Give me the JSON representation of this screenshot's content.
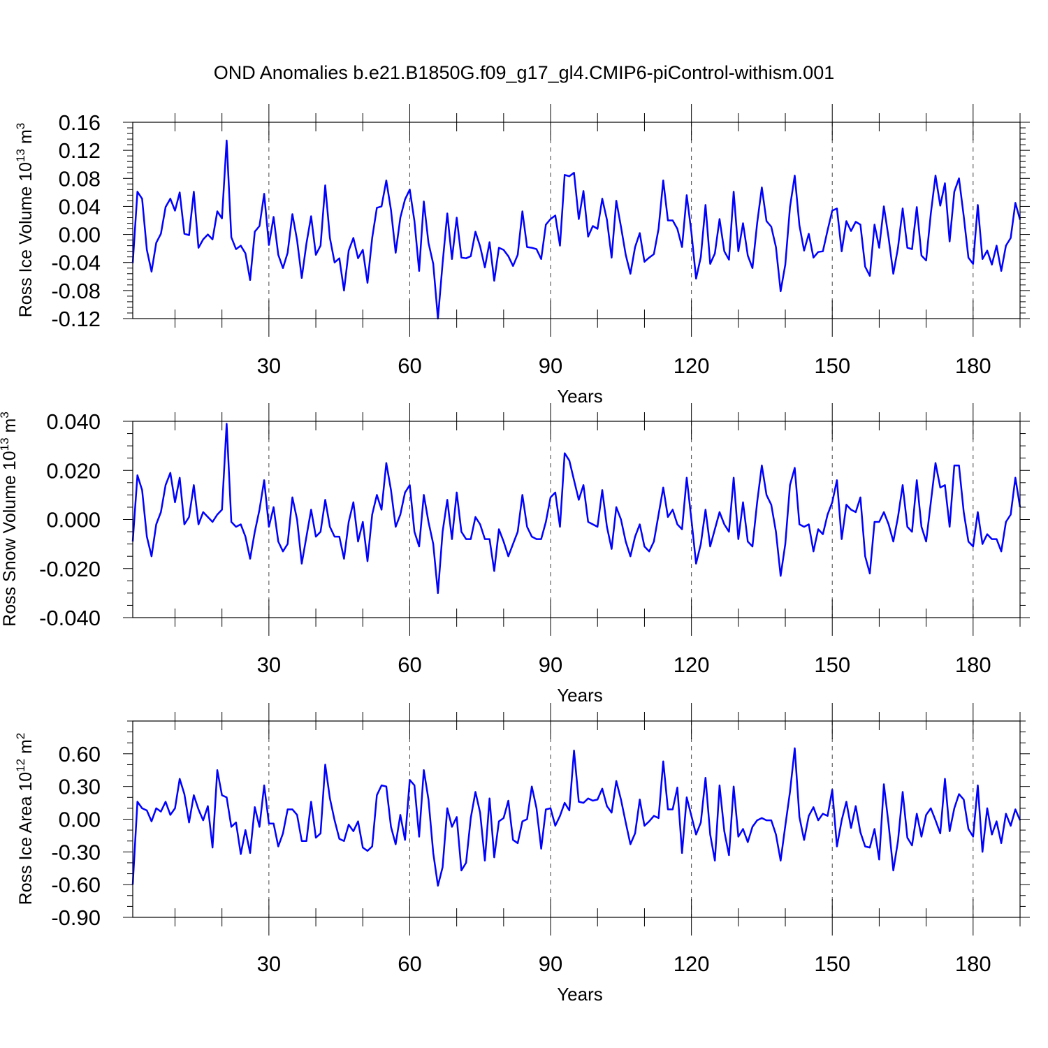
{
  "title": "OND Anomalies b.e21.B1850G.f09_g17_gl4.CMIP6-piControl-withism.001",
  "line_color": "#0000ff",
  "chart_data": [
    {
      "type": "line",
      "xlabel": "Years",
      "ylabel": "Ross Ice Volume 10",
      "ylabel_sup": "13",
      "ylabel_unit": "m",
      "ylabel_unit_sup": "3",
      "xlim": [
        1,
        190
      ],
      "ylim": [
        -0.12,
        0.16
      ],
      "x_ticks": [
        30,
        60,
        90,
        120,
        150,
        180
      ],
      "y_ticks": [
        "-0.12",
        "-0.08",
        "-0.04",
        "0.00",
        "0.04",
        "0.08",
        "0.12",
        "0.16"
      ],
      "grid": "vertical dashed at x ticks",
      "x_start": 1,
      "values": [
        -0.041,
        0.061,
        0.051,
        -0.022,
        -0.053,
        -0.012,
        0.001,
        0.039,
        0.051,
        0.034,
        0.06,
        0.001,
        -0.001,
        0.061,
        -0.019,
        -0.007,
        0.0,
        -0.007,
        0.033,
        0.023,
        0.134,
        -0.004,
        -0.021,
        -0.016,
        -0.027,
        -0.065,
        0.004,
        0.012,
        0.058,
        -0.015,
        0.025,
        -0.029,
        -0.048,
        -0.026,
        0.029,
        -0.008,
        -0.062,
        -0.013,
        0.026,
        -0.029,
        -0.016,
        0.07,
        -0.005,
        -0.04,
        -0.034,
        -0.08,
        -0.023,
        -0.005,
        -0.034,
        -0.022,
        -0.069,
        -0.005,
        0.038,
        0.04,
        0.077,
        0.035,
        -0.026,
        0.024,
        0.05,
        0.064,
        0.019,
        -0.052,
        0.047,
        -0.012,
        -0.042,
        -0.12,
        -0.041,
        0.03,
        -0.035,
        0.024,
        -0.033,
        -0.034,
        -0.031,
        0.004,
        -0.017,
        -0.047,
        -0.011,
        -0.066,
        -0.019,
        -0.022,
        -0.031,
        -0.045,
        -0.029,
        0.033,
        -0.018,
        -0.019,
        -0.021,
        -0.035,
        0.014,
        0.022,
        0.027,
        -0.016,
        0.085,
        0.083,
        0.088,
        0.022,
        0.062,
        -0.003,
        0.012,
        0.008,
        0.051,
        0.021,
        -0.033,
        0.048,
        0.011,
        -0.029,
        -0.056,
        -0.018,
        0.002,
        -0.039,
        -0.033,
        -0.028,
        0.008,
        0.077,
        0.02,
        0.02,
        0.008,
        -0.018,
        0.056,
        0.003,
        -0.063,
        -0.032,
        0.042,
        -0.042,
        -0.027,
        0.022,
        -0.024,
        -0.036,
        0.061,
        -0.024,
        0.016,
        -0.03,
        -0.048,
        0.016,
        0.067,
        0.019,
        0.011,
        -0.018,
        -0.081,
        -0.043,
        0.039,
        0.084,
        0.013,
        -0.023,
        0.001,
        -0.033,
        -0.025,
        -0.024,
        0.006,
        0.034,
        0.037,
        -0.024,
        0.019,
        0.005,
        0.018,
        0.014,
        -0.046,
        -0.059,
        0.014,
        -0.019,
        0.04,
        -0.005,
        -0.056,
        -0.019,
        0.037,
        -0.019,
        -0.021,
        0.039,
        -0.03,
        -0.037,
        0.03,
        0.084,
        0.041,
        0.073,
        -0.01,
        0.061,
        0.08,
        0.026,
        -0.033,
        -0.042,
        0.042,
        -0.035,
        -0.023,
        -0.043,
        -0.016,
        -0.052,
        -0.016,
        -0.005,
        0.045,
        0.021
      ]
    },
    {
      "type": "line",
      "xlabel": "Years",
      "ylabel": "Ross Snow Volume 10",
      "ylabel_sup": "13",
      "ylabel_unit": "m",
      "ylabel_unit_sup": "3",
      "xlim": [
        1,
        190
      ],
      "ylim": [
        -0.04,
        0.04
      ],
      "x_ticks": [
        30,
        60,
        90,
        120,
        150,
        180
      ],
      "y_ticks": [
        "-0.040",
        "-0.020",
        "0.000",
        "0.020",
        "0.040"
      ],
      "grid": "vertical dashed at x ticks",
      "x_start": 1,
      "values": [
        -0.009,
        0.018,
        0.012,
        -0.007,
        -0.015,
        -0.002,
        0.003,
        0.014,
        0.019,
        0.007,
        0.017,
        -0.002,
        0.001,
        0.014,
        -0.002,
        0.003,
        0.001,
        -0.001,
        0.002,
        0.004,
        0.039,
        -0.001,
        -0.003,
        -0.002,
        -0.007,
        -0.016,
        -0.005,
        0.004,
        0.016,
        -0.003,
        0.005,
        -0.009,
        -0.013,
        -0.01,
        0.009,
        0.0,
        -0.018,
        -0.007,
        0.004,
        -0.007,
        -0.005,
        0.008,
        -0.003,
        -0.007,
        -0.007,
        -0.016,
        -0.001,
        0.007,
        -0.009,
        -0.001,
        -0.017,
        0.002,
        0.01,
        0.004,
        0.023,
        0.012,
        -0.003,
        0.002,
        0.011,
        0.014,
        -0.005,
        -0.011,
        0.01,
        -0.001,
        -0.01,
        -0.03,
        -0.005,
        0.008,
        -0.008,
        0.011,
        -0.005,
        -0.008,
        -0.008,
        0.001,
        -0.002,
        -0.008,
        -0.008,
        -0.021,
        -0.004,
        -0.009,
        -0.015,
        -0.01,
        -0.005,
        0.01,
        -0.003,
        -0.007,
        -0.008,
        -0.008,
        -0.001,
        0.009,
        0.011,
        -0.003,
        0.027,
        0.024,
        0.016,
        0.008,
        0.014,
        -0.001,
        -0.002,
        -0.003,
        0.012,
        -0.003,
        -0.012,
        0.005,
        0.0,
        -0.009,
        -0.015,
        -0.007,
        -0.002,
        -0.011,
        -0.013,
        -0.009,
        0.002,
        0.013,
        0.001,
        0.004,
        -0.002,
        -0.004,
        0.017,
        0.0,
        -0.018,
        -0.01,
        0.004,
        -0.011,
        -0.004,
        0.003,
        -0.002,
        -0.005,
        0.017,
        -0.008,
        0.007,
        -0.009,
        -0.011,
        0.007,
        0.022,
        0.01,
        0.006,
        -0.005,
        -0.023,
        -0.01,
        0.014,
        0.021,
        -0.002,
        -0.003,
        -0.002,
        -0.013,
        -0.004,
        -0.006,
        0.002,
        0.007,
        0.016,
        -0.008,
        0.006,
        0.004,
        0.003,
        0.009,
        -0.015,
        -0.022,
        -0.001,
        -0.001,
        0.003,
        -0.002,
        -0.009,
        0.001,
        0.014,
        -0.003,
        -0.005,
        0.016,
        -0.003,
        -0.009,
        0.007,
        0.023,
        0.013,
        0.014,
        -0.003,
        0.022,
        0.022,
        0.003,
        -0.009,
        -0.011,
        0.003,
        -0.01,
        -0.006,
        -0.008,
        -0.008,
        -0.013,
        -0.001,
        0.002,
        0.017,
        0.005
      ]
    },
    {
      "type": "line",
      "xlabel": "Years",
      "ylabel": "Ross Ice Area 10",
      "ylabel_sup": "12",
      "ylabel_unit": "m",
      "ylabel_unit_sup": "2",
      "xlim": [
        1,
        190
      ],
      "ylim": [
        -0.9,
        0.9
      ],
      "x_ticks": [
        30,
        60,
        90,
        120,
        150,
        180
      ],
      "y_ticks": [
        "-0.90",
        "-0.60",
        "-0.30",
        "0.00",
        "0.30",
        "0.60"
      ],
      "grid": "vertical dashed at x ticks",
      "x_start": 1,
      "values": [
        -0.6,
        0.16,
        0.1,
        0.08,
        -0.02,
        0.1,
        0.07,
        0.16,
        0.04,
        0.1,
        0.37,
        0.23,
        -0.03,
        0.22,
        0.09,
        -0.01,
        0.12,
        -0.26,
        0.45,
        0.22,
        0.2,
        -0.07,
        -0.03,
        -0.32,
        -0.1,
        -0.31,
        0.11,
        -0.07,
        0.31,
        -0.04,
        -0.04,
        -0.25,
        -0.13,
        0.09,
        0.09,
        0.04,
        -0.2,
        -0.2,
        0.16,
        -0.17,
        -0.13,
        0.5,
        0.19,
        -0.01,
        -0.18,
        -0.2,
        -0.05,
        -0.11,
        -0.02,
        -0.26,
        -0.29,
        -0.25,
        0.22,
        0.31,
        0.3,
        -0.07,
        -0.23,
        0.04,
        -0.19,
        0.36,
        0.31,
        -0.16,
        0.45,
        0.18,
        -0.31,
        -0.61,
        -0.44,
        0.1,
        -0.07,
        0.02,
        -0.47,
        -0.4,
        0.01,
        0.25,
        0.06,
        -0.38,
        0.19,
        -0.35,
        -0.02,
        0.01,
        0.17,
        -0.19,
        -0.22,
        -0.02,
        0.0,
        0.3,
        0.1,
        -0.27,
        0.09,
        0.1,
        -0.06,
        0.03,
        0.15,
        0.08,
        0.63,
        0.16,
        0.15,
        0.19,
        0.17,
        0.18,
        0.28,
        0.12,
        0.06,
        0.35,
        0.18,
        -0.03,
        -0.23,
        -0.13,
        0.18,
        -0.06,
        -0.02,
        0.03,
        0.01,
        0.53,
        0.09,
        0.09,
        0.29,
        -0.31,
        0.2,
        0.03,
        -0.14,
        -0.03,
        0.38,
        -0.14,
        -0.38,
        0.31,
        -0.11,
        -0.33,
        0.3,
        -0.16,
        -0.09,
        -0.21,
        -0.07,
        -0.01,
        0.01,
        -0.01,
        -0.01,
        -0.14,
        -0.38,
        -0.06,
        0.25,
        0.65,
        0.02,
        -0.19,
        0.03,
        0.11,
        -0.01,
        0.05,
        0.03,
        0.27,
        -0.25,
        -0.01,
        0.16,
        -0.08,
        0.12,
        -0.12,
        -0.25,
        -0.26,
        -0.09,
        -0.37,
        0.32,
        -0.05,
        -0.47,
        -0.2,
        0.25,
        -0.17,
        -0.24,
        0.05,
        -0.16,
        0.04,
        0.1,
        -0.01,
        -0.13,
        0.37,
        -0.11,
        0.1,
        0.23,
        0.18,
        -0.09,
        -0.16,
        0.31,
        -0.3,
        0.1,
        -0.14,
        -0.02,
        -0.22,
        0.05,
        -0.06,
        0.09,
        -0.01
      ]
    }
  ]
}
